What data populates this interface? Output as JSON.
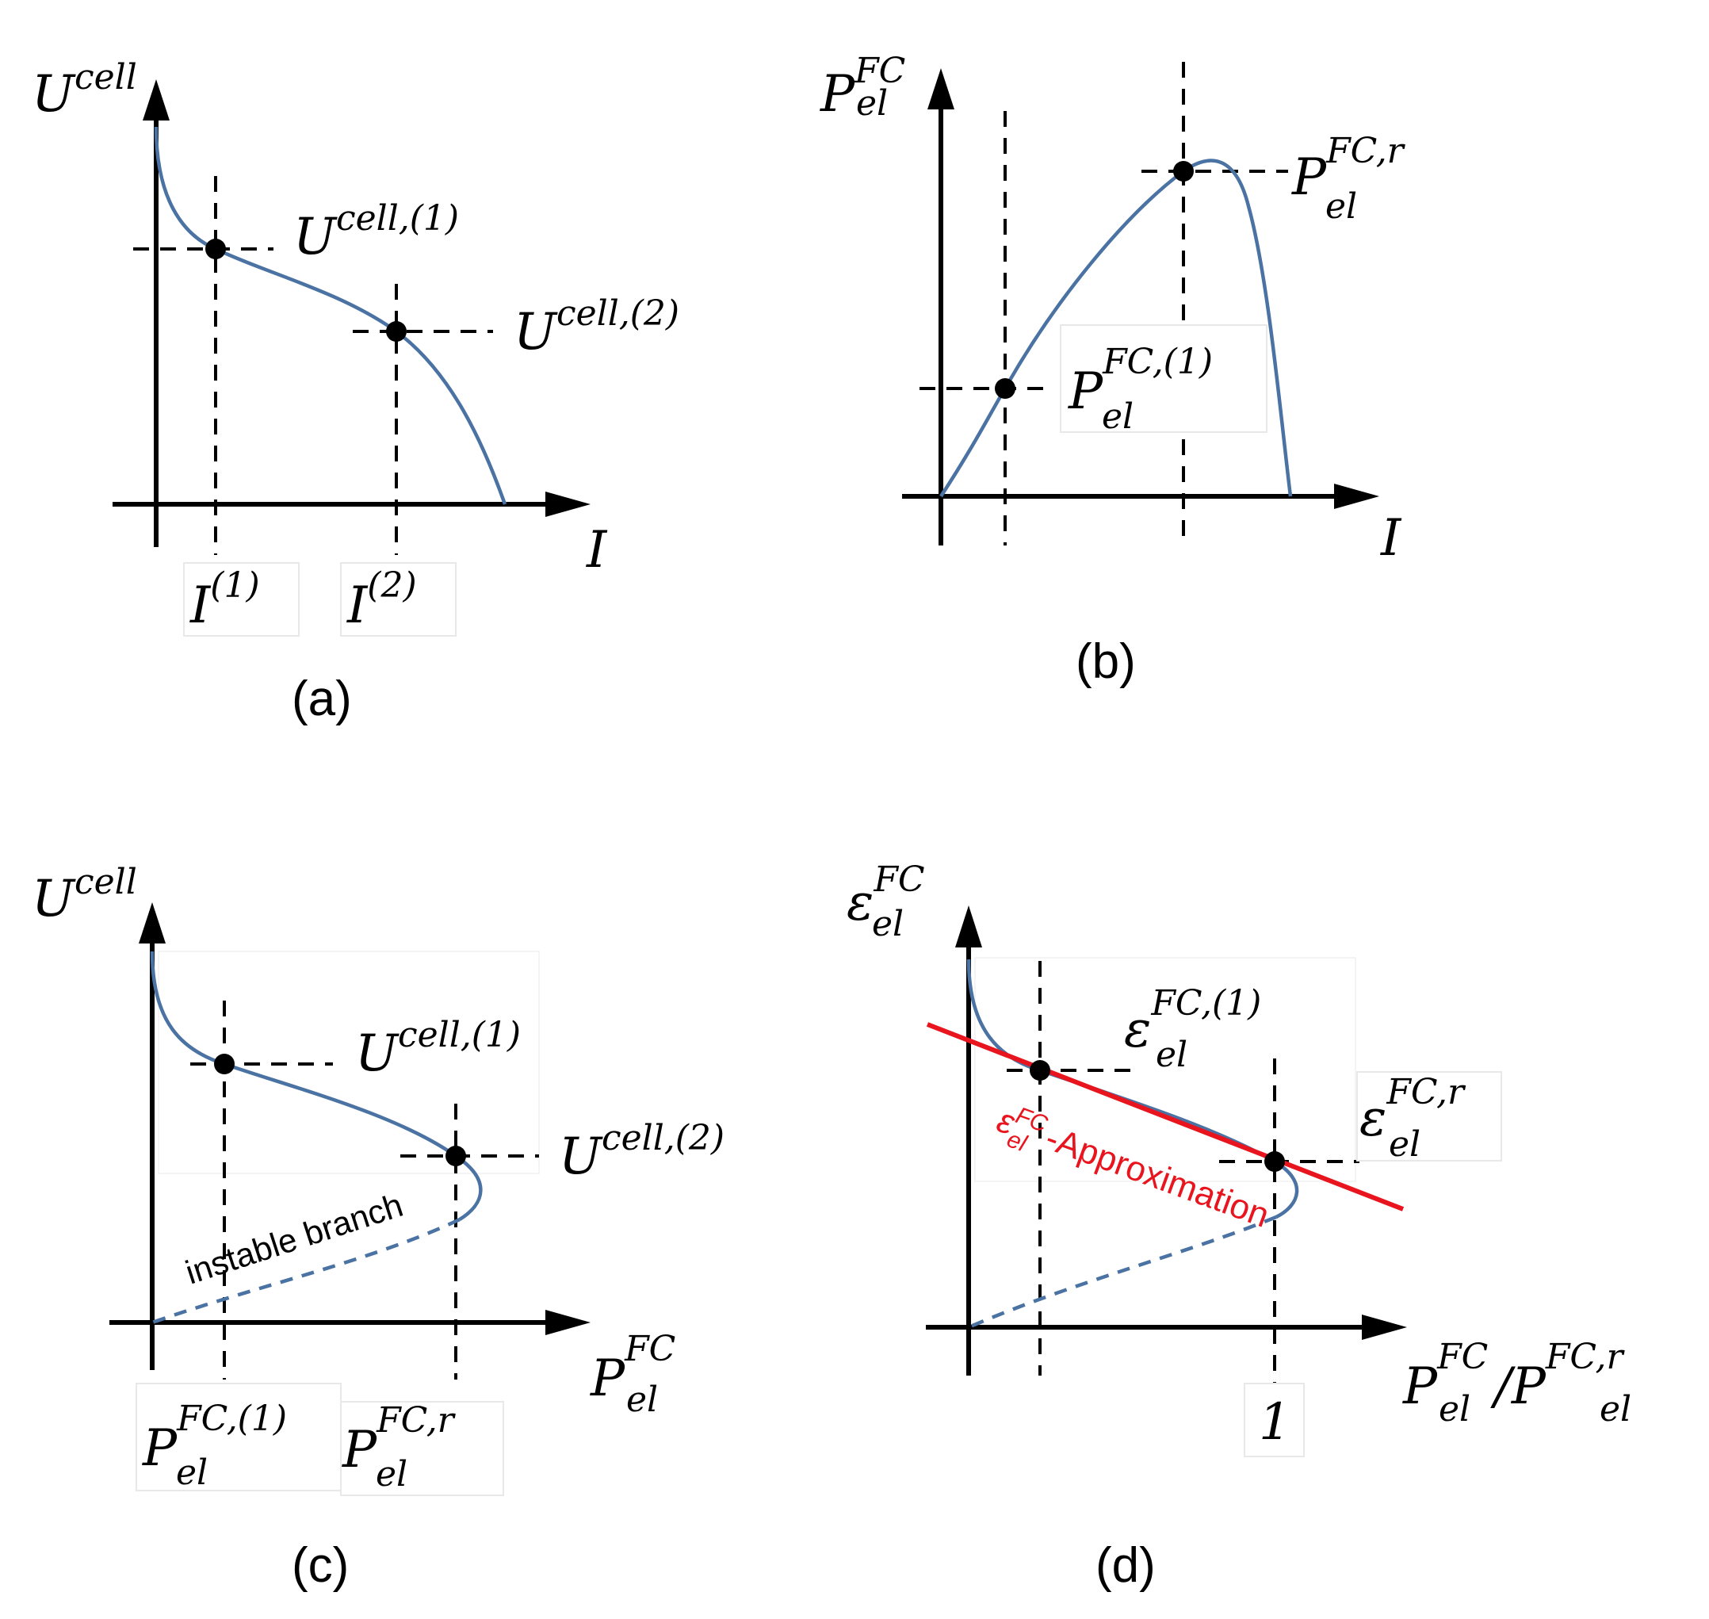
{
  "panels": {
    "a": {
      "caption": "(a)",
      "y_axis": {
        "base": "U",
        "sup": "cell"
      },
      "x_axis": {
        "base": "I"
      },
      "points": [
        {
          "base": "U",
          "sup": "cell,(1)"
        },
        {
          "base": "U",
          "sup": "cell,(2)"
        }
      ],
      "ticks": [
        {
          "base": "I",
          "sup": "(1)"
        },
        {
          "base": "I",
          "sup": "(2)"
        }
      ]
    },
    "b": {
      "caption": "(b)",
      "y_axis": {
        "base": "P",
        "sup": "FC",
        "sub": "el"
      },
      "x_axis": {
        "base": "I"
      },
      "points": [
        {
          "base": "P",
          "sup": "FC,r",
          "sub": "el"
        },
        {
          "base": "P",
          "sup": "FC,(1)",
          "sub": "el"
        }
      ]
    },
    "c": {
      "caption": "(c)",
      "y_axis": {
        "base": "U",
        "sup": "cell"
      },
      "x_axis": {
        "base": "P",
        "sup": "FC",
        "sub": "el"
      },
      "points": [
        {
          "base": "U",
          "sup": "cell,(1)"
        },
        {
          "base": "U",
          "sup": "cell,(2)"
        }
      ],
      "branch_label": "instable branch",
      "ticks": [
        {
          "base": "P",
          "sup": "FC,(1)",
          "sub": "el"
        },
        {
          "base": "P",
          "sup": "FC,r",
          "sub": "el"
        }
      ]
    },
    "d": {
      "caption": "(d)",
      "y_axis": {
        "base": "ε",
        "sup": "FC",
        "sub": "el"
      },
      "x_axis": {
        "base": "P",
        "sup": "FC",
        "sub": "el",
        "slash": "/",
        "base2": "P",
        "sup2": "FC,r",
        "sub2": "el"
      },
      "points": [
        {
          "base": "ε",
          "sup": "FC,(1)",
          "sub": "el"
        },
        {
          "base": "ε",
          "sup": "FC,r",
          "sub": "el"
        }
      ],
      "approximation": {
        "base": "ε",
        "sup": "FC",
        "sub": "el",
        "suffix": "-Approximation",
        "color": "#e8141e"
      },
      "ticks": [
        {
          "label": "1"
        }
      ]
    }
  },
  "colors": {
    "curve": "#4a72a3",
    "axis": "#000000",
    "approximation": "#e8141e"
  }
}
